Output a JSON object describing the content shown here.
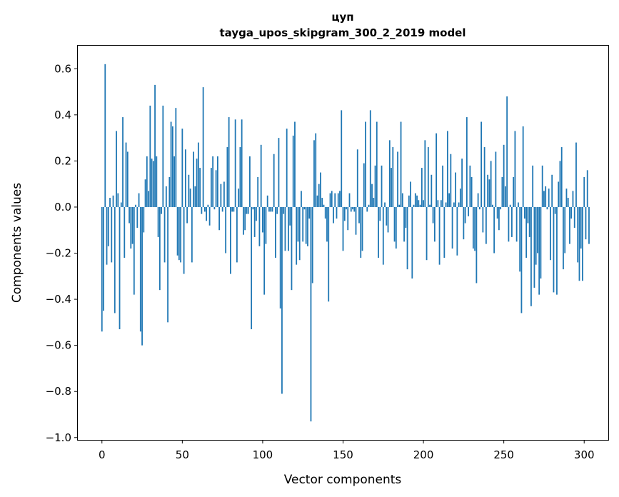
{
  "chart_data": {
    "type": "bar",
    "title": "цуп",
    "subtitle": "tayga_upos_skipgram_300_2_2019 model",
    "xlabel": "Vector components",
    "ylabel": "Components values",
    "xlim": [
      -15,
      315
    ],
    "ylim": [
      -1.01,
      0.7
    ],
    "xticks": [
      0,
      50,
      100,
      150,
      200,
      250,
      300
    ],
    "xtick_labels": [
      "0",
      "50",
      "100",
      "150",
      "200",
      "250",
      "300"
    ],
    "yticks": [
      0.6,
      0.4,
      0.2,
      0.0,
      -0.2,
      -0.4,
      -0.6,
      -0.8,
      -1.0
    ],
    "ytick_labels": [
      "0.6",
      "0.4",
      "0.2",
      "0.0",
      "−0.2",
      "−0.4",
      "−0.6",
      "−0.8",
      "−1.0"
    ],
    "bar_color": "#1f77b4",
    "grid": false,
    "x_start": 0,
    "values": [
      -0.54,
      -0.45,
      0.62,
      -0.25,
      -0.17,
      0.04,
      -0.24,
      0.05,
      -0.46,
      0.33,
      0.06,
      -0.53,
      0.02,
      0.39,
      -0.22,
      0.28,
      0.24,
      -0.07,
      -0.18,
      -0.16,
      -0.38,
      0.01,
      -0.09,
      0.06,
      -0.54,
      -0.6,
      -0.11,
      0.12,
      0.22,
      0.07,
      0.44,
      0.21,
      0.2,
      0.53,
      0.22,
      -0.13,
      -0.36,
      -0.03,
      0.44,
      -0.24,
      0.09,
      -0.5,
      0.13,
      0.37,
      0.35,
      0.22,
      0.43,
      -0.21,
      -0.23,
      -0.24,
      0.34,
      -0.29,
      0.25,
      -0.07,
      0.14,
      0.08,
      -0.24,
      0.24,
      0.09,
      0.21,
      0.28,
      0.17,
      -0.03,
      0.52,
      -0.02,
      -0.06,
      0.01,
      -0.08,
      0.17,
      0.22,
      -0.01,
      0.16,
      0.22,
      -0.1,
      0.1,
      -0.02,
      0.11,
      -0.2,
      0.26,
      0.39,
      -0.29,
      -0.02,
      -0.02,
      0.38,
      -0.24,
      0.08,
      0.26,
      0.38,
      -0.12,
      -0.1,
      -0.03,
      -0.03,
      0.22,
      -0.53,
      -0.01,
      -0.13,
      -0.06,
      0.13,
      -0.17,
      0.27,
      -0.11,
      -0.38,
      -0.16,
      0.05,
      -0.02,
      -0.02,
      -0.02,
      0.23,
      -0.22,
      -0.03,
      0.3,
      -0.44,
      -0.81,
      -0.03,
      -0.19,
      0.34,
      -0.19,
      -0.08,
      -0.36,
      0.31,
      0.37,
      -0.25,
      -0.15,
      -0.23,
      0.07,
      -0.15,
      -0.01,
      -0.16,
      -0.17,
      -0.05,
      -0.93,
      -0.33,
      0.29,
      0.32,
      0.05,
      0.1,
      0.15,
      0.04,
      0.01,
      -0.05,
      -0.15,
      -0.41,
      0.06,
      0.07,
      -0.07,
      0.06,
      -0.05,
      0.06,
      0.07,
      0.42,
      -0.19,
      -0.06,
      -0.01,
      -0.1,
      0.06,
      -0.02,
      -0.01,
      -0.02,
      -0.12,
      0.25,
      -0.07,
      -0.22,
      -0.19,
      0.19,
      0.37,
      -0.02,
      0.01,
      0.42,
      0.1,
      0.04,
      0.18,
      0.37,
      -0.22,
      -0.06,
      0.18,
      -0.25,
      0.02,
      -0.08,
      -0.11,
      0.29,
      0.17,
      0.26,
      -0.15,
      -0.18,
      0.24,
      0.01,
      0.37,
      0.06,
      -0.15,
      -0.09,
      -0.27,
      0.05,
      0.11,
      -0.31,
      0.01,
      0.06,
      0.05,
      0.03,
      0.01,
      0.17,
      0.03,
      0.29,
      -0.23,
      0.26,
      0.01,
      0.14,
      -0.07,
      -0.15,
      0.32,
      0.03,
      -0.25,
      0.03,
      0.18,
      -0.22,
      0.02,
      0.33,
      0.06,
      0.23,
      -0.18,
      0.02,
      0.15,
      -0.21,
      0.02,
      0.08,
      0.21,
      -0.14,
      -0.07,
      0.39,
      -0.04,
      0.18,
      0.13,
      -0.18,
      -0.19,
      -0.33,
      0.06,
      -0.01,
      0.37,
      -0.11,
      0.26,
      -0.16,
      0.14,
      0.12,
      0.2,
      0.01,
      -0.2,
      0.24,
      -0.05,
      -0.1,
      -0.01,
      0.13,
      0.27,
      0.09,
      0.48,
      -0.15,
      0.01,
      -0.13,
      0.13,
      0.33,
      -0.15,
      0.02,
      -0.28,
      -0.46,
      0.35,
      -0.05,
      -0.22,
      -0.07,
      -0.13,
      -0.43,
      0.18,
      -0.35,
      -0.25,
      -0.2,
      -0.38,
      -0.31,
      0.18,
      0.07,
      0.09,
      -0.01,
      0.08,
      -0.23,
      0.14,
      -0.37,
      -0.03,
      -0.38,
      0.11,
      0.2,
      0.26,
      -0.27,
      -0.2,
      0.08,
      0.04,
      -0.16,
      -0.05,
      0.07,
      -0.09,
      0.28,
      -0.24,
      -0.32,
      -0.18,
      -0.32,
      0.13,
      -0.14,
      0.16,
      -0.16
    ]
  }
}
